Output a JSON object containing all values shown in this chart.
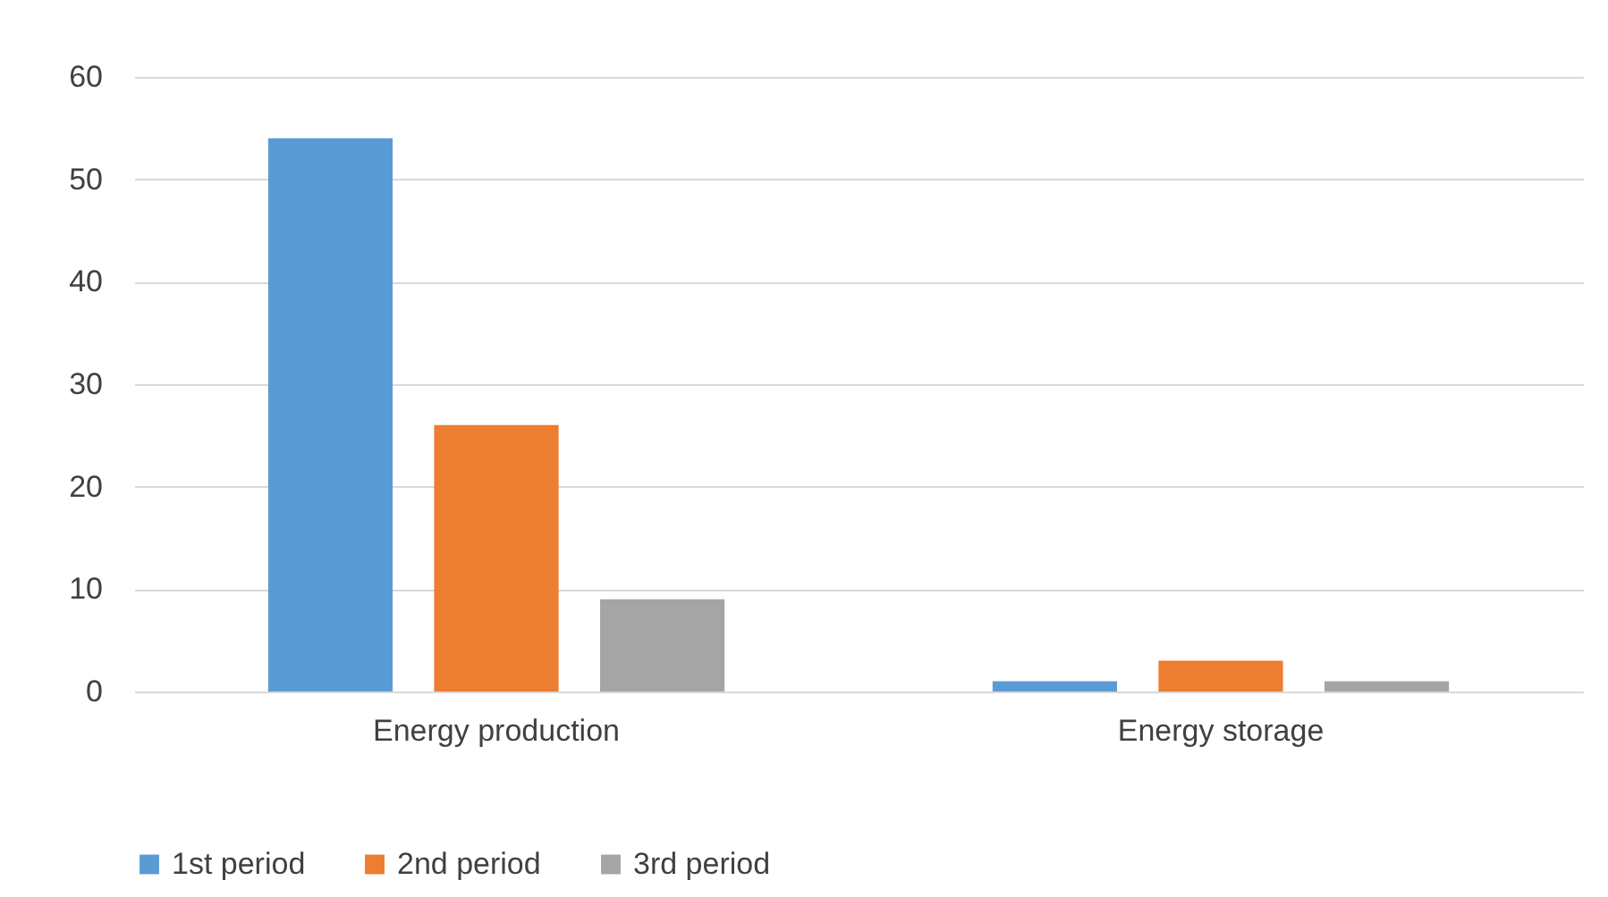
{
  "chart_data": {
    "type": "bar",
    "categories": [
      "Energy production",
      "Energy storage"
    ],
    "series": [
      {
        "name": "1st period",
        "color": "#5b9bd5",
        "values": [
          54,
          1
        ]
      },
      {
        "name": "2nd period",
        "color": "#ed7d31",
        "values": [
          26,
          3
        ]
      },
      {
        "name": "3rd period",
        "color": "#a5a5a5",
        "values": [
          9,
          1
        ]
      }
    ],
    "ylim": [
      0,
      60
    ],
    "yticks": [
      0,
      10,
      20,
      30,
      40,
      50,
      60
    ],
    "grid": "y",
    "legend": "bottom"
  }
}
